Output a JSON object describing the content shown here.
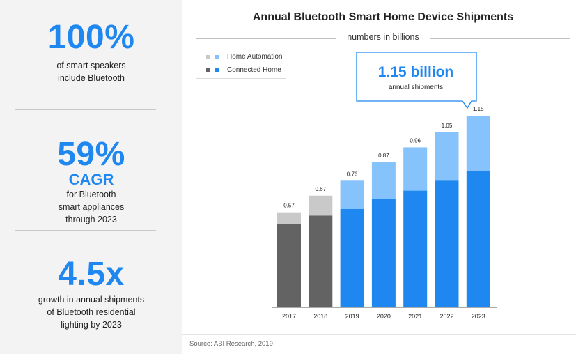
{
  "left_panel": {
    "stat1": {
      "big": "100%",
      "line1": "of smart speakers",
      "line2": "include Bluetooth"
    },
    "stat2": {
      "big": "59%",
      "sub": "CAGR",
      "line1": "for Bluetooth",
      "line2": "smart appliances",
      "line3": "through 2023"
    },
    "stat3": {
      "big": "4.5x",
      "line1": "growth in annual shipments",
      "line2": "of Bluetooth residential",
      "line3": "lighting by 2023"
    }
  },
  "chart_data": {
    "type": "bar",
    "stacked": true,
    "title": "Annual Bluetooth Smart Home Device Shipments",
    "subtitle": "numbers in billions",
    "categories": [
      "2017",
      "2018",
      "2019",
      "2020",
      "2021",
      "2022",
      "2023"
    ],
    "totals": [
      0.57,
      0.67,
      0.76,
      0.87,
      0.96,
      1.05,
      1.15
    ],
    "total_labels": [
      "0.57",
      "0.67",
      "0.76",
      "0.87",
      "0.96",
      "1.05",
      "1.15"
    ],
    "series": [
      {
        "name": "Connected Home",
        "values": [
          0.5,
          0.55,
          0.59,
          0.65,
          0.7,
          0.76,
          0.82
        ]
      },
      {
        "name": "Home Automation",
        "values": [
          0.07,
          0.12,
          0.17,
          0.22,
          0.26,
          0.29,
          0.33
        ]
      }
    ],
    "ylim": [
      0,
      1.15
    ],
    "grid": false,
    "legend_position": "top-left",
    "colors": {
      "history_connected": "#636363",
      "history_automation": "#c9c9c9",
      "forecast_connected": "#1f87f0",
      "forecast_automation": "#86c2fb"
    },
    "callout": {
      "value": "1.15 billion",
      "label": "annual shipments"
    }
  },
  "legend": {
    "items": [
      {
        "label": "Home Automation"
      },
      {
        "label": "Connected Home"
      }
    ]
  },
  "source": "Source: ABI Research, 2019"
}
